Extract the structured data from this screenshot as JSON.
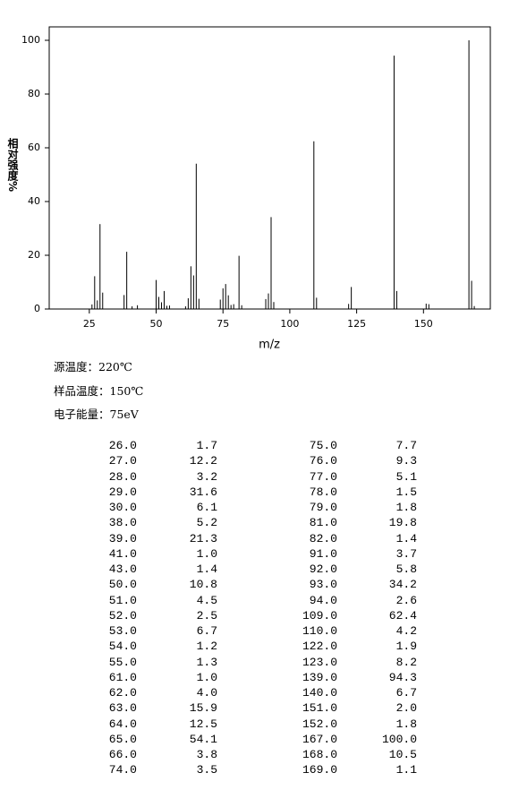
{
  "chart_data": {
    "type": "bar",
    "x_label": "m/z",
    "y_label": "相对强度%",
    "x": [
      26,
      27,
      28,
      29,
      30,
      38,
      39,
      41,
      43,
      50,
      51,
      52,
      53,
      54,
      55,
      61,
      62,
      63,
      64,
      65,
      66,
      74,
      75,
      76,
      77,
      78,
      79,
      81,
      82,
      91,
      92,
      93,
      94,
      109,
      110,
      122,
      123,
      139,
      140,
      151,
      152,
      167,
      168,
      169
    ],
    "values": [
      1.7,
      12.2,
      3.2,
      31.6,
      6.1,
      5.2,
      21.3,
      1.0,
      1.4,
      10.8,
      4.5,
      2.5,
      6.7,
      1.2,
      1.3,
      1.0,
      4.0,
      15.9,
      12.5,
      54.1,
      3.8,
      3.5,
      7.7,
      9.3,
      5.1,
      1.5,
      1.8,
      19.8,
      1.4,
      3.7,
      5.8,
      34.2,
      2.6,
      62.4,
      4.2,
      1.9,
      8.2,
      94.3,
      6.7,
      2.0,
      1.8,
      100.0,
      10.5,
      1.1
    ],
    "color": "#000000",
    "xlim": [
      10,
      175
    ],
    "xticks": [
      25,
      50,
      75,
      100,
      125,
      150
    ],
    "ylim": [
      0,
      105
    ],
    "yticks": [
      0,
      20,
      40,
      60,
      80,
      100
    ]
  },
  "conditions": [
    "源温度：220℃",
    "样品温度：150℃",
    "电子能量：75eV"
  ],
  "peak_table": {
    "rows": [
      [
        "26.0",
        "1.7"
      ],
      [
        "27.0",
        "12.2"
      ],
      [
        "28.0",
        "3.2"
      ],
      [
        "29.0",
        "31.6"
      ],
      [
        "30.0",
        "6.1"
      ],
      [
        "38.0",
        "5.2"
      ],
      [
        "39.0",
        "21.3"
      ],
      [
        "41.0",
        "1.0"
      ],
      [
        "43.0",
        "1.4"
      ],
      [
        "50.0",
        "10.8"
      ],
      [
        "51.0",
        "4.5"
      ],
      [
        "52.0",
        "2.5"
      ],
      [
        "53.0",
        "6.7"
      ],
      [
        "54.0",
        "1.2"
      ],
      [
        "55.0",
        "1.3"
      ],
      [
        "61.0",
        "1.0"
      ],
      [
        "62.0",
        "4.0"
      ],
      [
        "63.0",
        "15.9"
      ],
      [
        "64.0",
        "12.5"
      ],
      [
        "65.0",
        "54.1"
      ],
      [
        "66.0",
        "3.8"
      ],
      [
        "74.0",
        "3.5"
      ],
      [
        "75.0",
        "7.7"
      ],
      [
        "76.0",
        "9.3"
      ],
      [
        "77.0",
        "5.1"
      ],
      [
        "78.0",
        "1.5"
      ],
      [
        "79.0",
        "1.8"
      ],
      [
        "81.0",
        "19.8"
      ],
      [
        "82.0",
        "1.4"
      ],
      [
        "91.0",
        "3.7"
      ],
      [
        "92.0",
        "5.8"
      ],
      [
        "93.0",
        "34.2"
      ],
      [
        "94.0",
        "2.6"
      ],
      [
        "109.0",
        "62.4"
      ],
      [
        "110.0",
        "4.2"
      ],
      [
        "122.0",
        "1.9"
      ],
      [
        "123.0",
        "8.2"
      ],
      [
        "139.0",
        "94.3"
      ],
      [
        "140.0",
        "6.7"
      ],
      [
        "151.0",
        "2.0"
      ],
      [
        "152.0",
        "1.8"
      ],
      [
        "167.0",
        "100.0"
      ],
      [
        "168.0",
        "10.5"
      ],
      [
        "169.0",
        "1.1"
      ]
    ]
  }
}
